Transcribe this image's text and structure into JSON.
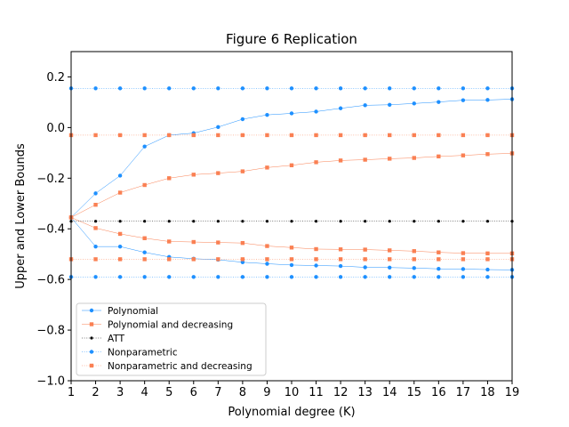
{
  "chart_data": {
    "type": "line",
    "title": "Figure 6 Replication",
    "xlabel": "Polynomial degree (K)",
    "ylabel": "Upper and Lower Bounds",
    "xlim": [
      1,
      19
    ],
    "ylim": [
      -1.0,
      0.3
    ],
    "xticks": [
      1,
      2,
      3,
      4,
      5,
      6,
      7,
      8,
      9,
      10,
      11,
      12,
      13,
      14,
      15,
      16,
      17,
      18,
      19
    ],
    "yticks": [
      -1.0,
      -0.8,
      -0.6,
      -0.4,
      -0.2,
      0.0,
      0.2
    ],
    "ytick_labels": [
      "−1.0",
      "−0.8",
      "−0.6",
      "−0.4",
      "−0.2",
      "0.0",
      "0.2"
    ],
    "grid": false,
    "legend_position": "lower-left",
    "x": [
      1,
      2,
      3,
      4,
      5,
      6,
      7,
      8,
      9,
      10,
      11,
      12,
      13,
      14,
      15,
      16,
      17,
      18,
      19
    ],
    "legend": [
      {
        "label": "Polynomial",
        "color": "#1e90ff",
        "marker": "circle",
        "line": "solid"
      },
      {
        "label": "Polynomial and decreasing",
        "color": "#fa8053",
        "marker": "square",
        "line": "solid"
      },
      {
        "label": "ATT",
        "color": "#000000",
        "marker": "circle",
        "line": "dotted"
      },
      {
        "label": "Nonparametric",
        "color": "#1e90ff",
        "marker": "circle",
        "line": "dotted"
      },
      {
        "label": "Nonparametric and decreasing",
        "color": "#fa8053",
        "marker": "square",
        "line": "dotted"
      }
    ],
    "series": [
      {
        "name": "Polynomial",
        "bound": "upper",
        "color": "#1e90ff",
        "marker": "circle",
        "line": "solid",
        "values": [
          -0.355,
          -0.26,
          -0.19,
          -0.075,
          -0.03,
          -0.022,
          0.002,
          0.033,
          0.05,
          0.056,
          0.063,
          0.076,
          0.088,
          0.09,
          0.095,
          0.101,
          0.108,
          0.109,
          0.112
        ]
      },
      {
        "name": "Polynomial",
        "bound": "lower",
        "color": "#1e90ff",
        "marker": "circle",
        "line": "solid",
        "values": [
          -0.355,
          -0.47,
          -0.47,
          -0.493,
          -0.511,
          -0.518,
          -0.522,
          -0.532,
          -0.538,
          -0.543,
          -0.545,
          -0.547,
          -0.552,
          -0.553,
          -0.555,
          -0.558,
          -0.559,
          -0.561,
          -0.562
        ]
      },
      {
        "name": "Polynomial and decreasing",
        "bound": "upper",
        "color": "#fa8053",
        "marker": "square",
        "line": "solid",
        "values": [
          -0.355,
          -0.305,
          -0.257,
          -0.227,
          -0.2,
          -0.186,
          -0.18,
          -0.173,
          -0.158,
          -0.149,
          -0.137,
          -0.13,
          -0.127,
          -0.123,
          -0.12,
          -0.114,
          -0.11,
          -0.105,
          -0.102
        ]
      },
      {
        "name": "Polynomial and decreasing",
        "bound": "lower",
        "color": "#fa8053",
        "marker": "square",
        "line": "solid",
        "values": [
          -0.355,
          -0.397,
          -0.42,
          -0.437,
          -0.45,
          -0.452,
          -0.454,
          -0.456,
          -0.468,
          -0.474,
          -0.48,
          -0.481,
          -0.482,
          -0.485,
          -0.488,
          -0.493,
          -0.496,
          -0.497,
          -0.497
        ]
      },
      {
        "name": "ATT",
        "color": "#000000",
        "marker": "circle",
        "line": "dotted",
        "values": [
          -0.37,
          -0.37,
          -0.37,
          -0.37,
          -0.37,
          -0.37,
          -0.37,
          -0.37,
          -0.37,
          -0.37,
          -0.37,
          -0.37,
          -0.37,
          -0.37,
          -0.37,
          -0.37,
          -0.37,
          -0.37,
          -0.37
        ]
      },
      {
        "name": "Nonparametric",
        "bound": "upper",
        "color": "#1e90ff",
        "marker": "circle",
        "line": "dotted",
        "values": [
          0.155,
          0.155,
          0.155,
          0.155,
          0.155,
          0.155,
          0.155,
          0.155,
          0.155,
          0.155,
          0.155,
          0.155,
          0.155,
          0.155,
          0.155,
          0.155,
          0.155,
          0.155,
          0.155
        ]
      },
      {
        "name": "Nonparametric",
        "bound": "lower",
        "color": "#1e90ff",
        "marker": "circle",
        "line": "dotted",
        "values": [
          -0.59,
          -0.59,
          -0.59,
          -0.59,
          -0.59,
          -0.59,
          -0.59,
          -0.59,
          -0.59,
          -0.59,
          -0.59,
          -0.59,
          -0.59,
          -0.59,
          -0.59,
          -0.59,
          -0.59,
          -0.59,
          -0.59
        ]
      },
      {
        "name": "Nonparametric and decreasing",
        "bound": "upper",
        "color": "#fa8053",
        "marker": "square",
        "line": "dotted",
        "values": [
          -0.03,
          -0.03,
          -0.03,
          -0.03,
          -0.03,
          -0.03,
          -0.03,
          -0.03,
          -0.03,
          -0.03,
          -0.03,
          -0.03,
          -0.03,
          -0.03,
          -0.03,
          -0.03,
          -0.03,
          -0.03,
          -0.03
        ]
      },
      {
        "name": "Nonparametric and decreasing",
        "bound": "lower",
        "color": "#fa8053",
        "marker": "square",
        "line": "dotted",
        "values": [
          -0.52,
          -0.52,
          -0.52,
          -0.52,
          -0.52,
          -0.52,
          -0.52,
          -0.52,
          -0.52,
          -0.52,
          -0.52,
          -0.52,
          -0.52,
          -0.52,
          -0.52,
          -0.52,
          -0.52,
          -0.52,
          -0.52
        ]
      }
    ]
  }
}
